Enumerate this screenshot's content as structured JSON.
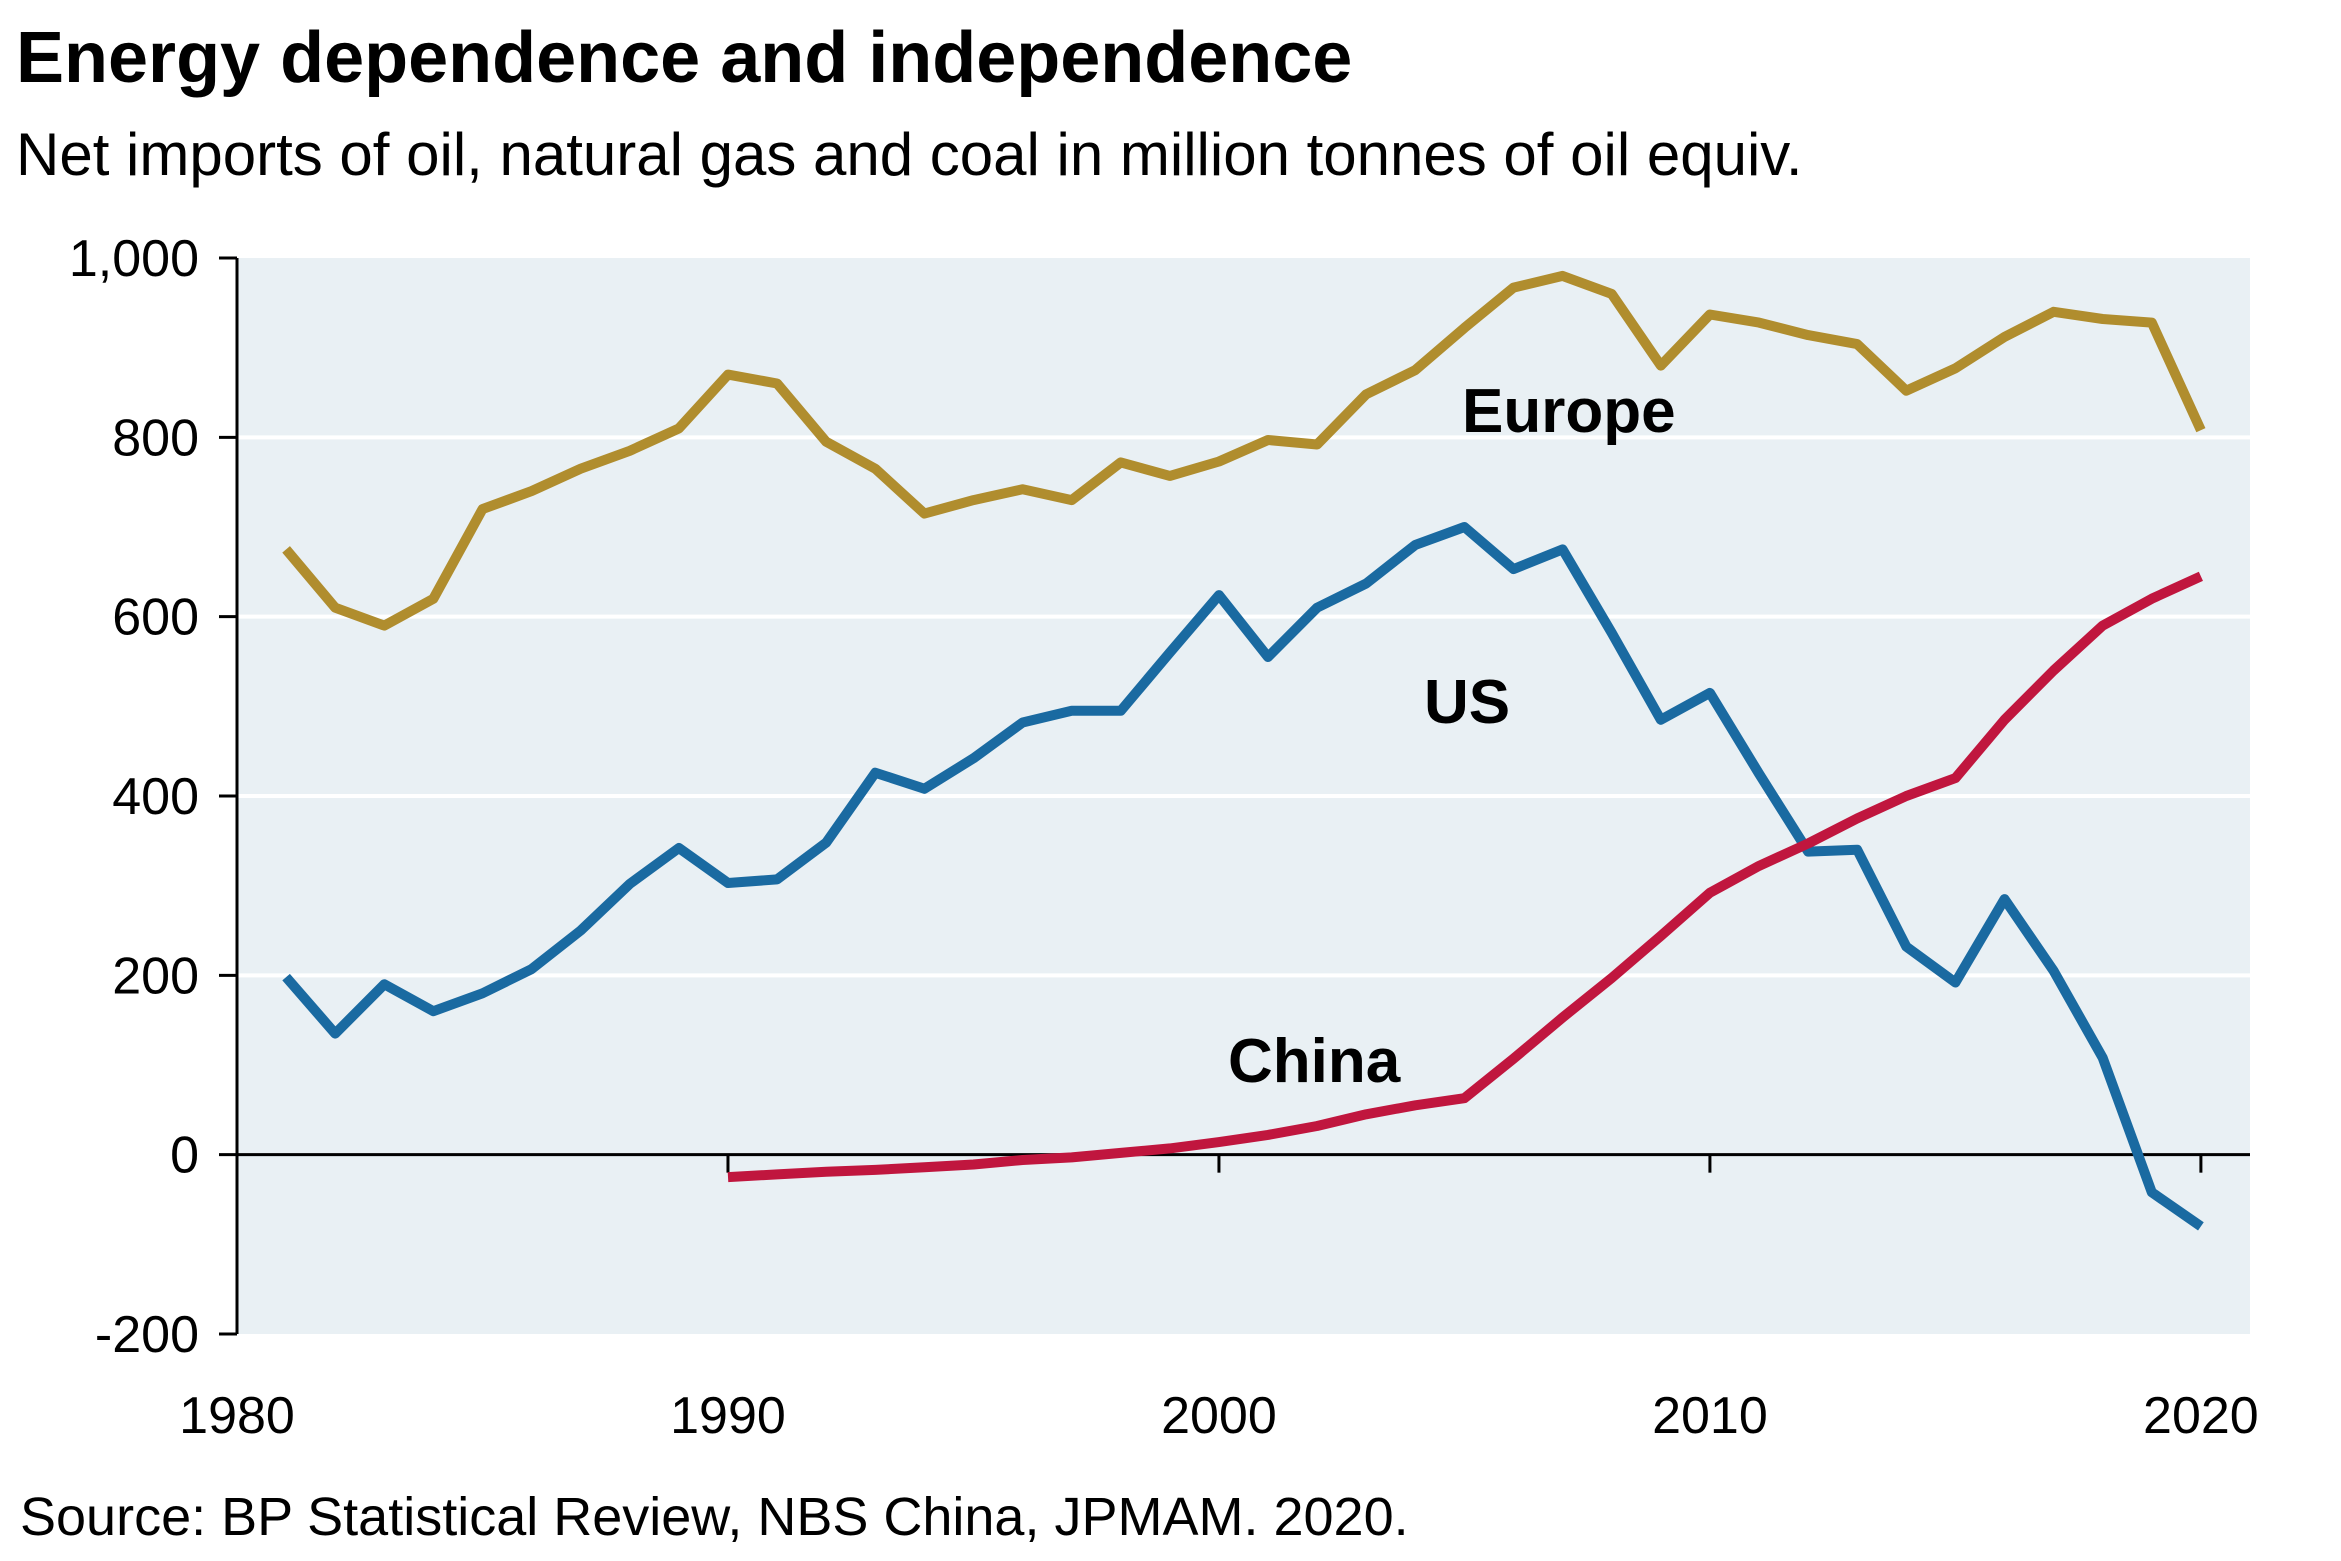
{
  "title": "Energy dependence and independence",
  "subtitle": "Net imports of oil, natural gas and coal in million tonnes of oil equiv.",
  "source": "Source: BP Statistical Review, NBS China, JPMAM. 2020.",
  "chart_data": {
    "type": "line",
    "ylim": [
      -200,
      1000
    ],
    "xlim": [
      1980,
      2021
    ],
    "x_ticks": [
      "1980",
      "1990",
      "2000",
      "2010",
      "2020"
    ],
    "y_ticks": [
      "1,000",
      "800",
      "600",
      "400",
      "200",
      "0",
      "-200"
    ],
    "grid": true,
    "legend": "inline labels",
    "series": [
      {
        "name": "Europe",
        "color": "#b08d2e",
        "x": [
          1981,
          1982,
          1983,
          1984,
          1985,
          1986,
          1987,
          1988,
          1989,
          1990,
          1991,
          1992,
          1993,
          1994,
          1995,
          1996,
          1997,
          1998,
          1999,
          2000,
          2001,
          2002,
          2003,
          2004,
          2005,
          2006,
          2007,
          2008,
          2009,
          2010,
          2011,
          2012,
          2013,
          2014,
          2015,
          2016,
          2017,
          2018,
          2019,
          2020
        ],
        "values": [
          675,
          610,
          590,
          620,
          720,
          740,
          765,
          785,
          810,
          870,
          860,
          795,
          765,
          715,
          730,
          742,
          730,
          772,
          757,
          773,
          797,
          792,
          848,
          875,
          922,
          967,
          980,
          960,
          880,
          937,
          928,
          914,
          904,
          852,
          877,
          912,
          940,
          932,
          928,
          808
        ]
      },
      {
        "name": "US",
        "color": "#1a6aa1",
        "x": [
          1981,
          1982,
          1983,
          1984,
          1985,
          1986,
          1987,
          1988,
          1989,
          1990,
          1991,
          1992,
          1993,
          1994,
          1995,
          1996,
          1997,
          1998,
          1999,
          2000,
          2001,
          2002,
          2003,
          2004,
          2005,
          2006,
          2007,
          2008,
          2009,
          2010,
          2011,
          2012,
          2013,
          2014,
          2015,
          2016,
          2017,
          2018,
          2019,
          2020
        ],
        "values": [
          198,
          135,
          190,
          160,
          180,
          207,
          250,
          302,
          342,
          303,
          307,
          348,
          426,
          408,
          442,
          482,
          495,
          495,
          560,
          624,
          555,
          610,
          637,
          680,
          700,
          653,
          675,
          582,
          485,
          515,
          425,
          338,
          340,
          232,
          192,
          285,
          205,
          108,
          -42,
          -80
        ]
      },
      {
        "name": "China",
        "color": "#c0163e",
        "x": [
          1990,
          1991,
          1992,
          1993,
          1994,
          1995,
          1996,
          1997,
          1998,
          1999,
          2000,
          2001,
          2002,
          2003,
          2004,
          2005,
          2006,
          2007,
          2008,
          2009,
          2010,
          2011,
          2012,
          2013,
          2014,
          2015,
          2016,
          2017,
          2018,
          2019,
          2020
        ],
        "values": [
          -25,
          -22,
          -19,
          -17,
          -14,
          -11,
          -6,
          -3,
          2,
          7,
          14,
          22,
          32,
          45,
          55,
          63,
          107,
          153,
          197,
          244,
          292,
          322,
          347,
          375,
          400,
          420,
          485,
          540,
          590,
          620,
          645
        ]
      }
    ]
  }
}
